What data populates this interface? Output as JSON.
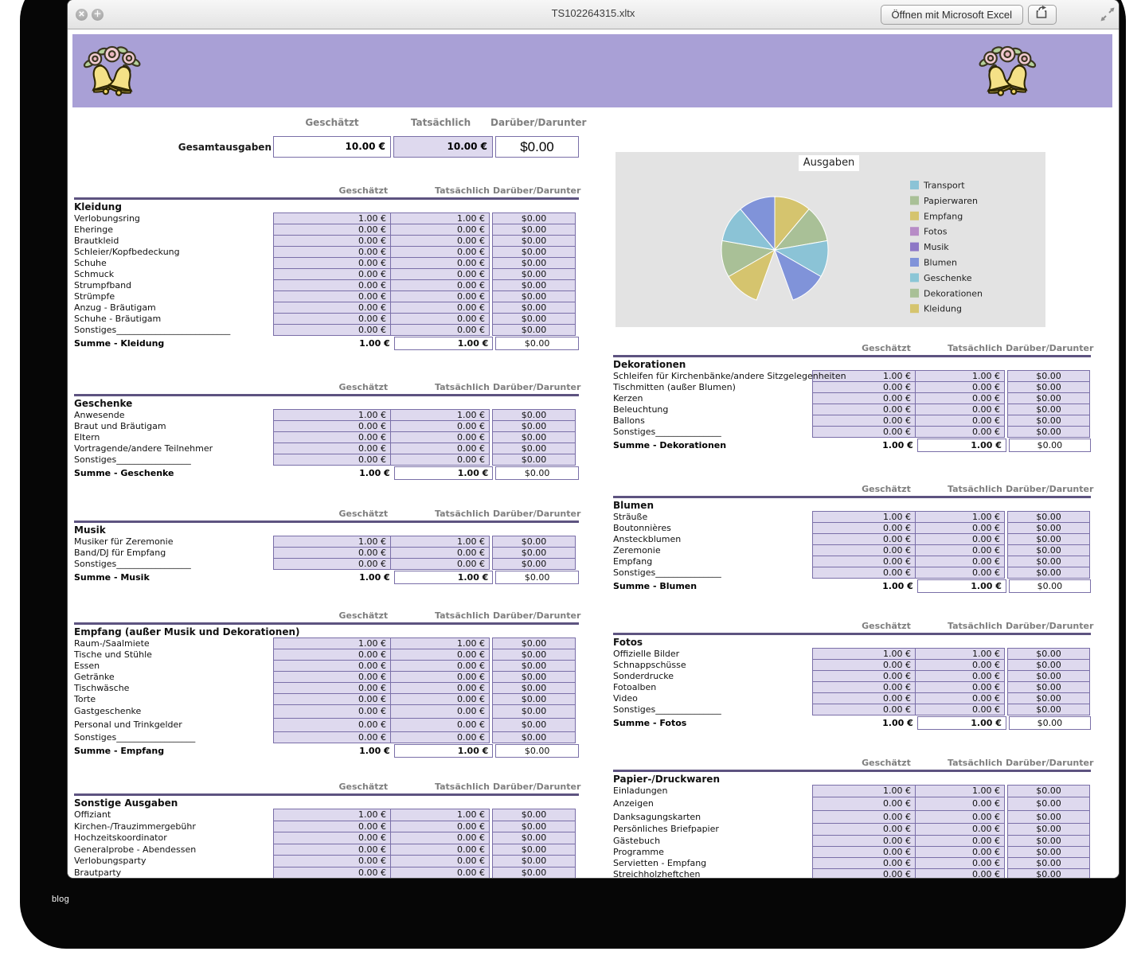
{
  "window": {
    "title": "TS102264315.xltx",
    "open_button_label": "Öffnen mit Microsoft Excel",
    "footer_label": "blog"
  },
  "columns_header": [
    "Geschätzt",
    "Tatsächlich",
    "Darüber/Darunter"
  ],
  "summary": {
    "label": "Gesamtausgaben",
    "estimated": "10.00 €",
    "actual": "10.00 €",
    "over_under": "$0.00"
  },
  "left_sections": [
    {
      "title": "Kleidung",
      "rows": [
        [
          "Verlobungsring",
          "1.00 €",
          "1.00 €",
          "$0.00"
        ],
        [
          "Eheringe",
          "0.00 €",
          "0.00 €",
          "$0.00"
        ],
        [
          "Brautkleid",
          "0.00 €",
          "0.00 €",
          "$0.00"
        ],
        [
          "Schleier/Kopfbedeckung",
          "0.00 €",
          "0.00 €",
          "$0.00"
        ],
        [
          "Schuhe",
          "0.00 €",
          "0.00 €",
          "$0.00"
        ],
        [
          "Schmuck",
          "0.00 €",
          "0.00 €",
          "$0.00"
        ],
        [
          "Strumpfband",
          "0.00 €",
          "0.00 €",
          "$0.00"
        ],
        [
          "Strümpfe",
          "0.00 €",
          "0.00 €",
          "$0.00"
        ],
        [
          "Anzug - Bräutigam",
          "0.00 €",
          "0.00 €",
          "$0.00"
        ],
        [
          "Schuhe - Bräutigam",
          "0.00 €",
          "0.00 €",
          "$0.00"
        ],
        [
          "Sonstiges__________________________",
          "0.00 €",
          "0.00 €",
          "$0.00"
        ]
      ],
      "sum": [
        "Summe - Kleidung",
        "1.00 €",
        "1.00 €",
        "$0.00"
      ]
    },
    {
      "title": "Geschenke",
      "rows": [
        [
          "Anwesende",
          "1.00 €",
          "1.00 €",
          "$0.00"
        ],
        [
          "Braut und Bräutigam",
          "0.00 €",
          "0.00 €",
          "$0.00"
        ],
        [
          "Eltern",
          "0.00 €",
          "0.00 €",
          "$0.00"
        ],
        [
          "Vortragende/andere Teilnehmer",
          "0.00 €",
          "0.00 €",
          "$0.00"
        ],
        [
          "Sonstiges_________________",
          "0.00 €",
          "0.00 €",
          "$0.00"
        ]
      ],
      "sum": [
        "Summe - Geschenke",
        "1.00 €",
        "1.00 €",
        "$0.00"
      ]
    },
    {
      "title": "Musik",
      "rows": [
        [
          "Musiker für Zeremonie",
          "1.00 €",
          "1.00 €",
          "$0.00"
        ],
        [
          "Band/DJ für Empfang",
          "0.00 €",
          "0.00 €",
          "$0.00"
        ],
        [
          "Sonstiges_________________",
          "0.00 €",
          "0.00 €",
          "$0.00"
        ]
      ],
      "sum": [
        "Summe - Musik",
        "1.00 €",
        "1.00 €",
        "$0.00"
      ]
    },
    {
      "title": "Empfang (außer Musik und Dekorationen)",
      "rows": [
        [
          "Raum-/Saalmiete",
          "1.00 €",
          "1.00 €",
          "$0.00"
        ],
        [
          "Tische und Stühle",
          "0.00 €",
          "0.00 €",
          "$0.00"
        ],
        [
          "Essen",
          "0.00 €",
          "0.00 €",
          "$0.00"
        ],
        [
          "Getränke",
          "0.00 €",
          "0.00 €",
          "$0.00"
        ],
        [
          "Tischwäsche",
          "0.00 €",
          "0.00 €",
          "$0.00"
        ],
        [
          "Torte",
          "0.00 €",
          "0.00 €",
          "$0.00"
        ],
        [
          "Gastgeschenke",
          "0.00 €",
          "0.00 €",
          "$0.00"
        ],
        [
          "Personal und Trinkgelder",
          "0.00 €",
          "0.00 €",
          "$0.00"
        ],
        [
          "Sonstiges__________________",
          "0.00 €",
          "0.00 €",
          "$0.00"
        ]
      ],
      "sum": [
        "Summe - Empfang",
        "1.00 €",
        "1.00 €",
        "$0.00"
      ]
    },
    {
      "title": "Sonstige Ausgaben",
      "rows": [
        [
          "Offiziant",
          "1.00 €",
          "1.00 €",
          "$0.00"
        ],
        [
          "Kirchen-/Trauzimmergebühr",
          "0.00 €",
          "0.00 €",
          "$0.00"
        ],
        [
          "Hochzeitskoordinator",
          "0.00 €",
          "0.00 €",
          "$0.00"
        ],
        [
          "Generalprobe - Abendessen",
          "0.00 €",
          "0.00 €",
          "$0.00"
        ],
        [
          "Verlobungsparty",
          "0.00 €",
          "0.00 €",
          "$0.00"
        ],
        [
          "Brautparty",
          "0.00 €",
          "0.00 €",
          "$0.00"
        ]
      ],
      "sum": null
    }
  ],
  "right_sections": [
    {
      "title": "Dekorationen",
      "rows": [
        [
          "Schleifen für Kirchenbänke/andere Sitzgelegenheiten",
          "1.00 €",
          "1.00 €",
          "$0.00"
        ],
        [
          "Tischmitten (außer Blumen)",
          "0.00 €",
          "0.00 €",
          "$0.00"
        ],
        [
          "Kerzen",
          "0.00 €",
          "0.00 €",
          "$0.00"
        ],
        [
          "Beleuchtung",
          "0.00 €",
          "0.00 €",
          "$0.00"
        ],
        [
          "Ballons",
          "0.00 €",
          "0.00 €",
          "$0.00"
        ],
        [
          "Sonstiges_______________",
          "0.00 €",
          "0.00 €",
          "$0.00"
        ]
      ],
      "sum": [
        "Summe - Dekorationen",
        "1.00 €",
        "1.00 €",
        "$0.00"
      ]
    },
    {
      "title": "Blumen",
      "rows": [
        [
          "Sträuße",
          "1.00 €",
          "1.00 €",
          "$0.00"
        ],
        [
          "Boutonnières",
          "0.00 €",
          "0.00 €",
          "$0.00"
        ],
        [
          "Ansteckblumen",
          "0.00 €",
          "0.00 €",
          "$0.00"
        ],
        [
          "Zeremonie",
          "0.00 €",
          "0.00 €",
          "$0.00"
        ],
        [
          "Empfang",
          "0.00 €",
          "0.00 €",
          "$0.00"
        ],
        [
          "Sonstiges_______________",
          "0.00 €",
          "0.00 €",
          "$0.00"
        ]
      ],
      "sum": [
        "Summe - Blumen",
        "1.00 €",
        "1.00 €",
        "$0.00"
      ]
    },
    {
      "title": "Fotos",
      "rows": [
        [
          "Offizielle Bilder",
          "1.00 €",
          "1.00 €",
          "$0.00"
        ],
        [
          "Schnappschüsse",
          "0.00 €",
          "0.00 €",
          "$0.00"
        ],
        [
          "Sonderdrucke",
          "0.00 €",
          "0.00 €",
          "$0.00"
        ],
        [
          "Fotoalben",
          "0.00 €",
          "0.00 €",
          "$0.00"
        ],
        [
          "Video",
          "0.00 €",
          "0.00 €",
          "$0.00"
        ],
        [
          "Sonstiges_______________",
          "0.00 €",
          "0.00 €",
          "$0.00"
        ]
      ],
      "sum": [
        "Summe - Fotos",
        "1.00 €",
        "1.00 €",
        "$0.00"
      ]
    },
    {
      "title": "Papier-/Druckwaren",
      "rows": [
        [
          "Einladungen",
          "1.00 €",
          "1.00 €",
          "$0.00"
        ],
        [
          "Anzeigen",
          "0.00 €",
          "0.00 €",
          "$0.00"
        ],
        [
          "Danksagungskarten",
          "0.00 €",
          "0.00 €",
          "$0.00"
        ],
        [
          "Persönliches Briefpapier",
          "0.00 €",
          "0.00 €",
          "$0.00"
        ],
        [
          "Gästebuch",
          "0.00 €",
          "0.00 €",
          "$0.00"
        ],
        [
          "Programme",
          "0.00 €",
          "0.00 €",
          "$0.00"
        ],
        [
          "Servietten - Empfang",
          "0.00 €",
          "0.00 €",
          "$0.00"
        ],
        [
          "Streichholzheftchen",
          "0.00 €",
          "0.00 €",
          "$0.00"
        ]
      ],
      "sum": null
    }
  ],
  "chart_data": {
    "type": "pie",
    "title": "Ausgaben",
    "legend_position": "right",
    "categories": [
      "Transport",
      "Papierwaren",
      "Empfang",
      "Fotos",
      "Musik",
      "Blumen",
      "Geschenke",
      "Dekorationen",
      "Kleidung"
    ],
    "values": [
      1.0,
      1.0,
      1.0,
      1.0,
      1.0,
      1.0,
      1.0,
      1.0,
      1.0
    ],
    "unit": "EUR",
    "total_label": "10.00 €",
    "legend": [
      {
        "label": "Transport",
        "color": "#8bc3d6"
      },
      {
        "label": "Papierwaren",
        "color": "#a9c097"
      },
      {
        "label": "Empfang",
        "color": "#d5c46e"
      },
      {
        "label": "Fotos",
        "color": "#b78cc6"
      },
      {
        "label": "Musik",
        "color": "#8d77c6"
      },
      {
        "label": "Blumen",
        "color": "#8093d9"
      },
      {
        "label": "Geschenke",
        "color": "#8bc6d6"
      },
      {
        "label": "Dekorationen",
        "color": "#a9c097"
      },
      {
        "label": "Kleidung",
        "color": "#d5c46e"
      }
    ],
    "slices": [
      {
        "from": 0,
        "to": 40,
        "color": "#d5c46e"
      },
      {
        "from": 40,
        "to": 80,
        "color": "#a9c097"
      },
      {
        "from": 80,
        "to": 120,
        "color": "#8bc3d6"
      },
      {
        "from": 120,
        "to": 160,
        "color": "#8093d9"
      },
      {
        "from": 200,
        "to": 240,
        "color": "#d5c46e"
      },
      {
        "from": 240,
        "to": 280,
        "color": "#a9c097"
      },
      {
        "from": 280,
        "to": 320,
        "color": "#8bc3d6"
      },
      {
        "from": 320,
        "to": 360,
        "color": "#8093d9"
      }
    ],
    "blank_sector": {
      "from": 160,
      "to": 200
    }
  },
  "colors": {
    "banner": "#a9a0d6",
    "cell_fill": "#ded9ee",
    "cell_border": "#7a6fa8",
    "rule": "#5d5380",
    "chart_panel": "#e3e3e3"
  }
}
